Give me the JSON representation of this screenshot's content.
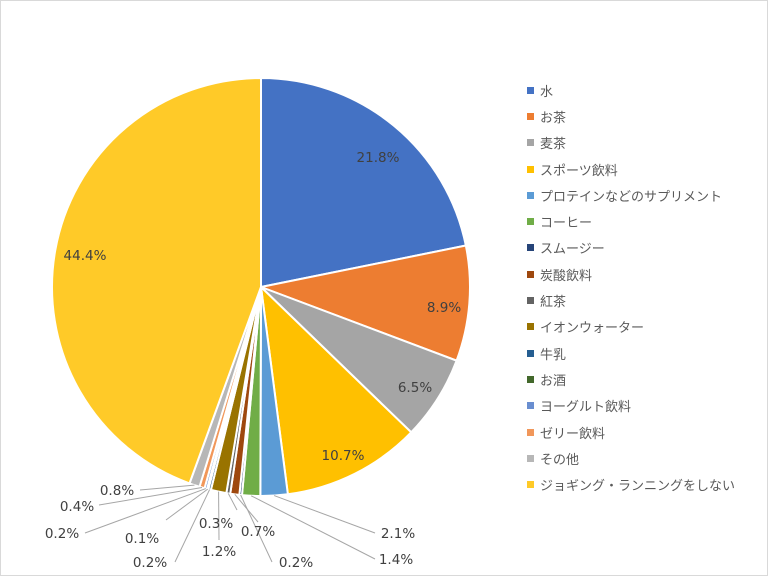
{
  "chart_data": {
    "type": "pie",
    "title": "",
    "slices": [
      {
        "label": "水",
        "value": 21.8,
        "display": "21.8%",
        "color": "#4472c4"
      },
      {
        "label": "お茶",
        "value": 8.9,
        "display": "8.9%",
        "color": "#ed7d31"
      },
      {
        "label": "麦茶",
        "value": 6.5,
        "display": "6.5%",
        "color": "#a5a5a5"
      },
      {
        "label": "スポーツ飲料",
        "value": 10.7,
        "display": "10.7%",
        "color": "#ffc000"
      },
      {
        "label": "プロテインなどのサプリメント",
        "value": 2.1,
        "display": "2.1%",
        "color": "#5b9bd5"
      },
      {
        "label": "コーヒー",
        "value": 1.4,
        "display": "1.4%",
        "color": "#70ad47"
      },
      {
        "label": "スムージー",
        "value": 0.2,
        "display": "0.2%",
        "color": "#264478"
      },
      {
        "label": "炭酸飲料",
        "value": 0.7,
        "display": "0.7%",
        "color": "#9e480e"
      },
      {
        "label": "紅茶",
        "value": 0.3,
        "display": "0.3%",
        "color": "#636363"
      },
      {
        "label": "イオンウォーター",
        "value": 1.2,
        "display": "1.2%",
        "color": "#997300"
      },
      {
        "label": "牛乳",
        "value": 0.2,
        "display": "0.2%",
        "color": "#255e91"
      },
      {
        "label": "お酒",
        "value": 0.1,
        "display": "0.1%",
        "color": "#43682b"
      },
      {
        "label": "ヨーグルト飲料",
        "value": 0.2,
        "display": "0.2%",
        "color": "#698ed0"
      },
      {
        "label": "ゼリー飲料",
        "value": 0.4,
        "display": "0.4%",
        "color": "#f1975a"
      },
      {
        "label": "その他",
        "value": 0.8,
        "display": "0.8%",
        "color": "#b7b7b7"
      },
      {
        "label": "ジョギング・ランニングをしない",
        "value": 44.4,
        "display": "44.4%",
        "color": "#ffca28"
      }
    ],
    "legend_position": "right"
  }
}
